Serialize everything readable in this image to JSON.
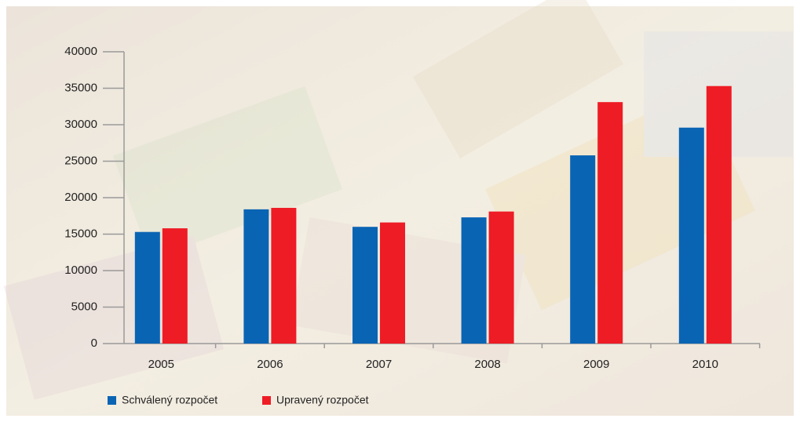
{
  "chart_data": {
    "type": "bar",
    "categories": [
      "2005",
      "2006",
      "2007",
      "2008",
      "2009",
      "2010"
    ],
    "series": [
      {
        "name": "Schválený rozpočet",
        "color": "#0a64b4",
        "values": [
          15300,
          18400,
          16000,
          17300,
          25800,
          29600
        ]
      },
      {
        "name": "Upravený rozpočet",
        "color": "#ee1c25",
        "values": [
          15800,
          18600,
          16600,
          18100,
          33100,
          35300
        ]
      }
    ],
    "ylim": [
      0,
      40000
    ],
    "yticks": [
      0,
      5000,
      10000,
      15000,
      20000,
      25000,
      30000,
      35000,
      40000
    ],
    "grid": false
  }
}
